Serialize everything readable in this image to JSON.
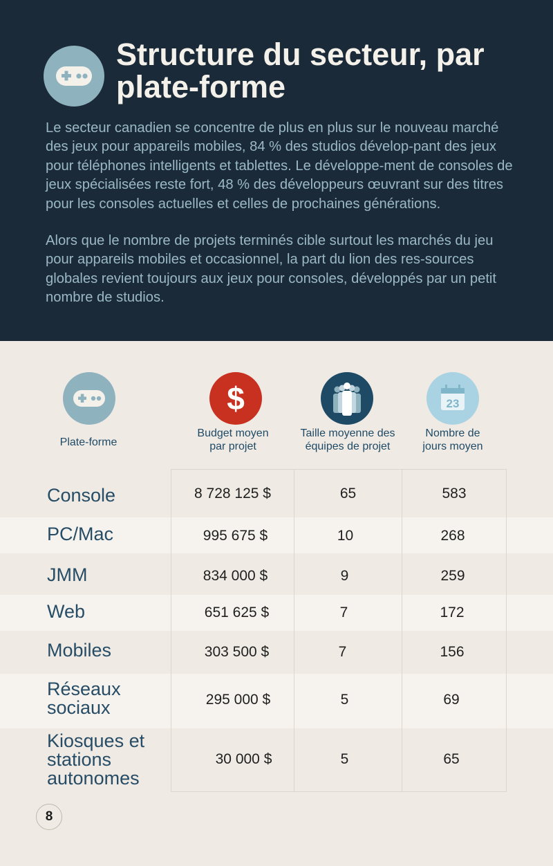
{
  "header": {
    "title": "Structure du secteur, par plate-forme",
    "paragraph1": "Le secteur canadien se concentre de plus en plus sur le nouveau marché des jeux pour appareils mobiles, 84 % des studios dévelop-pant des jeux pour téléphones intelligents et tablettes. Le développe-ment de consoles de jeux spécialisées reste fort, 48 % des développeurs œuvrant sur des titres pour les consoles actuelles et celles de prochaines générations.",
    "paragraph2": "Alors que le nombre de projets terminés cible surtout les marchés du jeu pour appareils mobiles et occasionnel, la part du lion des res-sources globales revient toujours aux jeux pour consoles, développés par un petit  nombre de studios."
  },
  "table": {
    "headers": {
      "platform": "Plate-forme",
      "budget": "Budget moyen par projet",
      "team": "Taille moyenne des équipes de projet",
      "days": "Nombre de jours moyen"
    },
    "calendar_day": "23",
    "rows": [
      {
        "platform": "Console",
        "budget": "8 728 125 $",
        "team": "65",
        "days": "583"
      },
      {
        "platform": "PC/Mac",
        "budget": "995 675 $",
        "team": "10",
        "days": "268"
      },
      {
        "platform": "JMM",
        "budget": "834 000 $",
        "team": "9",
        "days": "259"
      },
      {
        "platform": "Web",
        "budget": "651 625 $",
        "team": "7",
        "days": "172"
      },
      {
        "platform": "Mobiles",
        "budget": "303 500 $",
        "team": "7",
        "days": "156"
      },
      {
        "platform": "Réseaux sociaux",
        "budget": "295 000 $",
        "team": "5",
        "days": "69"
      },
      {
        "platform": "Kiosques et stations autonomes",
        "budget": "30 000 $",
        "team": "5",
        "days": "65"
      }
    ]
  },
  "page_number": "8",
  "colors": {
    "header_bg": "#1b2a39",
    "accent_red": "#c8301f",
    "accent_navy": "#1f4a66",
    "accent_blue": "#8fb2bf"
  },
  "icons": [
    "gamepad-icon",
    "dollar-icon",
    "team-icon",
    "calendar-icon"
  ]
}
